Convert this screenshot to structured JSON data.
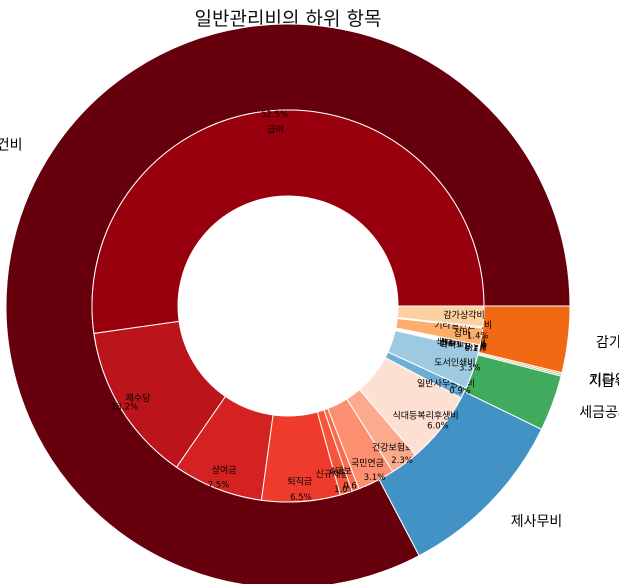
{
  "chart_data": {
    "type": "pie",
    "title": "일반관리비의 하위 항목",
    "outer_ring": {
      "labels": [
        "인건비",
        "제사무비",
        "세금공과금",
        "지급수수료",
        "기타일반관리비",
        "감가상각비"
      ],
      "values": [
        82.7,
        10.1,
        3.2,
        0.1,
        0.1,
        3.8
      ],
      "colors": [
        "#67000d",
        "#4292c6",
        "#41ab5d",
        "#74c476",
        "#fd8d3c",
        "#f16913"
      ]
    },
    "inner_ring": {
      "labels": [
        "급여",
        "제수당",
        "상여금",
        "퇴직금",
        "신규채용비용",
        "4대보험료",
        "국민연금",
        "건강보험료",
        "식대등복리후생비",
        "일반사무용품비",
        "도서인쇄비",
        "여비교통비",
        "업무추진비",
        "통신비",
        "임차료",
        "관리용수선비",
        "세금공과금",
        "지급수수료",
        "잡비",
        "기타일반관리비",
        "감가상각비"
      ],
      "values": [
        52.5,
        13.2,
        7.5,
        6.5,
        1.0,
        0.6,
        3.1,
        2.3,
        6.0,
        0.9,
        3.3,
        0.1,
        0.1,
        0.1,
        0.1,
        0.0,
        0.0,
        0.0,
        1.4,
        0.1,
        1.7
      ],
      "pct_labels": [
        "52.5%",
        "13.2%",
        "7.5%",
        "6.5%",
        "1.0%",
        "0.6%",
        "3.1%",
        "2.3%",
        "6.0%",
        "0.9%",
        "3.3%",
        "0.1%",
        "0.1%",
        "0.1%",
        "0.1%",
        "0.0%",
        "0.0%",
        "0.0%",
        "1.4%",
        "",
        ""
      ],
      "colors": [
        "#99000d",
        "#bb141a",
        "#d42121",
        "#ef3b2c",
        "#f5553d",
        "#fb6a4a",
        "#fc8f6f",
        "#fcaa8d",
        "#fee0d2",
        "#6baed6",
        "#9ecae1",
        "#a1d99b",
        "#a1d99b",
        "#a1d99b",
        "#c7e9c0",
        "#c7e9c0",
        "#c7e9c0",
        "#c7e9c0",
        "#fdae6b",
        "#fdae6b",
        "#fdd0a2"
      ]
    },
    "start_angle_deg": 0,
    "direction": "counterclockwise"
  }
}
